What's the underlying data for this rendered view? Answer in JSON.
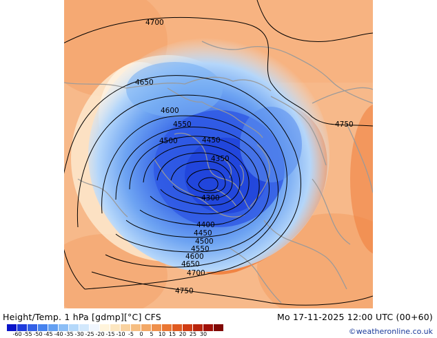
{
  "map": {
    "contours": [
      {
        "label": "4700"
      },
      {
        "label": "4650"
      },
      {
        "label": "4600"
      },
      {
        "label": "4550"
      },
      {
        "label": "4500"
      },
      {
        "label": "4450"
      },
      {
        "label": "4350"
      },
      {
        "label": "4300"
      },
      {
        "label": "4400"
      },
      {
        "label": "4450"
      },
      {
        "label": "4500"
      },
      {
        "label": "4550"
      },
      {
        "label": "4600"
      },
      {
        "label": "4650"
      },
      {
        "label": "4700"
      },
      {
        "label": "4750"
      },
      {
        "label": "4750"
      }
    ]
  },
  "footer": {
    "title": "Height/Temp. 1 hPa [gdmp][°C] CFS",
    "datetime": "Mo 17-11-2025 12:00 UTC (00+60)",
    "copyright": "©weatheronline.co.uk"
  },
  "legend": {
    "colors": [
      "#0a14c8",
      "#1e3cdc",
      "#3260e6",
      "#4682ee",
      "#64a0f2",
      "#8cbef6",
      "#b4d8fa",
      "#d2e8fc",
      "#f0f6fe",
      "#fff4dc",
      "#fce6c0",
      "#f9d2a0",
      "#f6be82",
      "#f3a866",
      "#ef904c",
      "#ea7632",
      "#e05a20",
      "#d03c14",
      "#b8240c",
      "#a01008",
      "#800804"
    ],
    "ticks": [
      "-60",
      "-55",
      "-50",
      "-45",
      "-40",
      "-35",
      "-30",
      "-25",
      "-20",
      "-15",
      "-10",
      "-5",
      "0",
      "5",
      "10",
      "15",
      "20",
      "25",
      "30"
    ]
  }
}
